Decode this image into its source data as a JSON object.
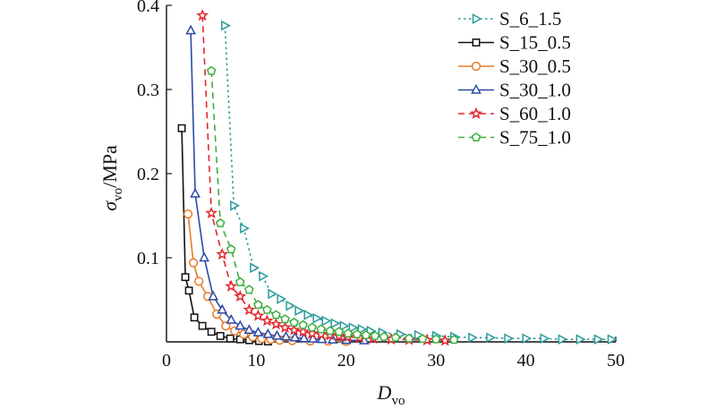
{
  "chart_data": {
    "type": "line",
    "title": "",
    "xlabel": {
      "main": "D",
      "sub": "vo"
    },
    "ylabel": {
      "main": "σ",
      "sub": "vo",
      "unit": "/MPa"
    },
    "xlim": [
      0,
      50
    ],
    "ylim": [
      0,
      0.4
    ],
    "xticks": [
      "0",
      "10",
      "20",
      "30",
      "40",
      "50"
    ],
    "yticks": [
      "0.1",
      "0.2",
      "0.3",
      "0.4"
    ],
    "grid": false,
    "legend_position": "top-right",
    "series": [
      {
        "name": "S_6_1.5",
        "color": "#2a9a9a",
        "linestyle": "dotted",
        "marker": "triangle-right",
        "x": [
          6.5,
          7.5,
          8.6,
          9.7,
          10.7,
          11.7,
          12.7,
          13.7,
          14.7,
          15.7,
          16.7,
          17.7,
          18.7,
          19.7,
          20.7,
          21.7,
          22.7,
          24.0,
          26.0,
          28.0,
          30.0,
          32.0,
          34.0,
          36.0,
          38.0,
          40.0,
          42.0,
          44.0,
          46.0,
          48.0,
          49.5
        ],
        "y": [
          0.376,
          0.162,
          0.135,
          0.088,
          0.078,
          0.057,
          0.051,
          0.043,
          0.037,
          0.032,
          0.028,
          0.025,
          0.022,
          0.019,
          0.017,
          0.015,
          0.013,
          0.011,
          0.009,
          0.008,
          0.007,
          0.006,
          0.005,
          0.005,
          0.004,
          0.004,
          0.004,
          0.003,
          0.003,
          0.003,
          0.003
        ]
      },
      {
        "name": "S_15_0.5",
        "color": "#111111",
        "linestyle": "solid",
        "marker": "square",
        "x": [
          1.7,
          2.1,
          2.5,
          3.1,
          4.0,
          5.0,
          6.0,
          7.1,
          8.2,
          9.2,
          10.3,
          11.3
        ],
        "y": [
          0.254,
          0.077,
          0.061,
          0.029,
          0.019,
          0.012,
          0.007,
          0.004,
          0.003,
          0.002,
          0.001,
          0.0005
        ]
      },
      {
        "name": "S_30_0.5",
        "color": "#e97a2c",
        "linestyle": "solid",
        "marker": "circle",
        "x": [
          2.4,
          3.0,
          3.6,
          4.6,
          5.6,
          6.6,
          7.6,
          8.6,
          9.6,
          10.6,
          11.6,
          12.6,
          14.0,
          16.0,
          18.0,
          20.0
        ],
        "y": [
          0.152,
          0.094,
          0.072,
          0.054,
          0.033,
          0.019,
          0.013,
          0.009,
          0.006,
          0.004,
          0.003,
          0.002,
          0.0015,
          0.001,
          0.0008,
          0.0005
        ]
      },
      {
        "name": "S_30_1.0",
        "color": "#2b49a6",
        "linestyle": "solid",
        "marker": "triangle-up",
        "x": [
          2.7,
          3.2,
          4.2,
          5.2,
          6.2,
          7.2,
          8.2,
          9.2,
          10.2,
          11.3,
          12.3,
          13.3,
          14.3,
          15.3,
          16.3,
          17.3,
          18.5,
          20.0,
          22.0
        ],
        "y": [
          0.37,
          0.176,
          0.1,
          0.054,
          0.038,
          0.026,
          0.019,
          0.014,
          0.011,
          0.009,
          0.007,
          0.006,
          0.005,
          0.004,
          0.0035,
          0.003,
          0.0025,
          0.002,
          0.0015
        ]
      },
      {
        "name": "S_60_1.0",
        "color": "#e4262c",
        "linestyle": "dashed",
        "marker": "star",
        "x": [
          4.0,
          5.0,
          6.2,
          7.2,
          8.2,
          9.2,
          10.2,
          11.2,
          12.2,
          13.2,
          14.2,
          15.2,
          16.2,
          17.2,
          18.2,
          19.2,
          20.2,
          21.5,
          23.0,
          25.0,
          27.0,
          29.0,
          31.0
        ],
        "y": [
          0.388,
          0.153,
          0.104,
          0.066,
          0.054,
          0.038,
          0.031,
          0.025,
          0.021,
          0.017,
          0.014,
          0.012,
          0.01,
          0.009,
          0.008,
          0.007,
          0.006,
          0.005,
          0.004,
          0.003,
          0.0025,
          0.002,
          0.0015
        ]
      },
      {
        "name": "S_75_1.0",
        "color": "#3cae3c",
        "linestyle": "dashed",
        "marker": "pentagon",
        "x": [
          5.0,
          6.0,
          7.2,
          8.2,
          9.2,
          10.2,
          11.2,
          12.2,
          13.2,
          14.2,
          15.2,
          16.2,
          17.2,
          18.2,
          19.2,
          20.2,
          21.2,
          22.2,
          23.2,
          24.2,
          25.5,
          27.0,
          28.5,
          30.0,
          32.0
        ],
        "y": [
          0.322,
          0.141,
          0.11,
          0.071,
          0.062,
          0.044,
          0.038,
          0.032,
          0.027,
          0.023,
          0.02,
          0.017,
          0.015,
          0.013,
          0.012,
          0.01,
          0.009,
          0.008,
          0.007,
          0.006,
          0.005,
          0.004,
          0.0035,
          0.003,
          0.0025
        ]
      }
    ]
  }
}
